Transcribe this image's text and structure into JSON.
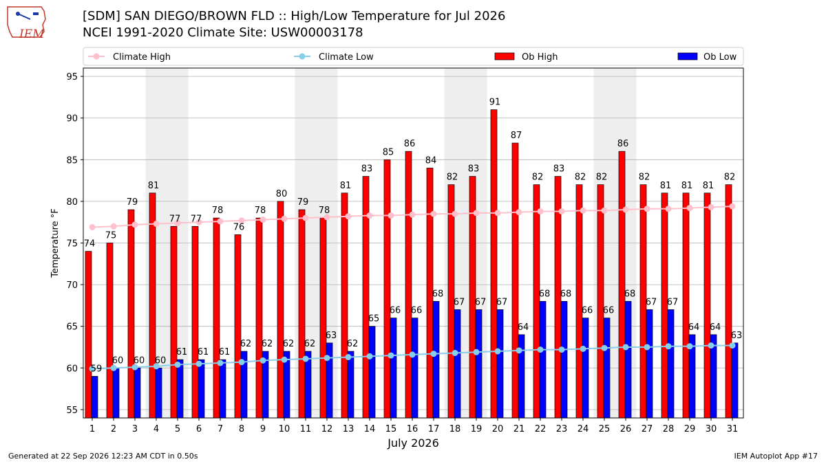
{
  "header": {
    "title_line1": "[SDM] SAN DIEGO/BROWN FLD :: High/Low Temperature for Jul 2026",
    "title_line2": "NCEI 1991-2020 Climate Site: USW00003178",
    "logo_text": "IEM"
  },
  "footer": {
    "generated": "Generated at 22 Sep 2026 12:23 AM CDT in 0.50s",
    "app": "IEM Autoplot App #17"
  },
  "colors": {
    "climate_high": "#ffc0cb",
    "climate_low": "#87ceeb",
    "ob_high": "#ff0000",
    "ob_low": "#0000ff",
    "weekend_shade": "#eeeeee",
    "grid": "#b0b0b0"
  },
  "chart_data": {
    "type": "bar",
    "xlabel": "July 2026",
    "ylabel": "Temperature °F",
    "ylim": [
      54,
      96
    ],
    "yticks": [
      55,
      60,
      65,
      70,
      75,
      80,
      85,
      90,
      95
    ],
    "x": [
      1,
      2,
      3,
      4,
      5,
      6,
      7,
      8,
      9,
      10,
      11,
      12,
      13,
      14,
      15,
      16,
      17,
      18,
      19,
      20,
      21,
      22,
      23,
      24,
      25,
      26,
      27,
      28,
      29,
      30,
      31
    ],
    "grid": true,
    "legend_placement": "top",
    "shaded_days": [
      [
        4,
        5
      ],
      [
        11,
        12
      ],
      [
        18,
        19
      ],
      [
        25,
        26
      ]
    ],
    "series": [
      {
        "name": "Climate High",
        "kind": "line",
        "values": [
          76.9,
          77.0,
          77.2,
          77.3,
          77.4,
          77.5,
          77.6,
          77.7,
          77.8,
          77.9,
          78.0,
          78.1,
          78.2,
          78.3,
          78.3,
          78.4,
          78.5,
          78.5,
          78.6,
          78.6,
          78.7,
          78.8,
          78.8,
          78.9,
          78.9,
          79.0,
          79.1,
          79.1,
          79.2,
          79.3,
          79.4
        ]
      },
      {
        "name": "Climate Low",
        "kind": "line",
        "values": [
          59.9,
          60.0,
          60.1,
          60.2,
          60.4,
          60.5,
          60.6,
          60.7,
          60.9,
          61.0,
          61.1,
          61.2,
          61.3,
          61.4,
          61.5,
          61.6,
          61.7,
          61.8,
          61.9,
          62.0,
          62.1,
          62.2,
          62.2,
          62.3,
          62.4,
          62.5,
          62.5,
          62.6,
          62.6,
          62.7,
          62.7
        ]
      },
      {
        "name": "Ob High",
        "kind": "bar",
        "values": [
          74,
          75,
          79,
          81,
          77,
          77,
          78,
          76,
          78,
          80,
          79,
          78,
          81,
          83,
          85,
          86,
          84,
          82,
          83,
          91,
          87,
          82,
          83,
          82,
          82,
          86,
          82,
          81,
          81,
          81,
          82
        ]
      },
      {
        "name": "Ob Low",
        "kind": "bar",
        "values": [
          59,
          60,
          60,
          60,
          61,
          61,
          61,
          62,
          62,
          62,
          62,
          63,
          62,
          65,
          66,
          66,
          68,
          67,
          67,
          67,
          64,
          68,
          68,
          66,
          66,
          68,
          67,
          67,
          64,
          64,
          63
        ]
      }
    ]
  }
}
